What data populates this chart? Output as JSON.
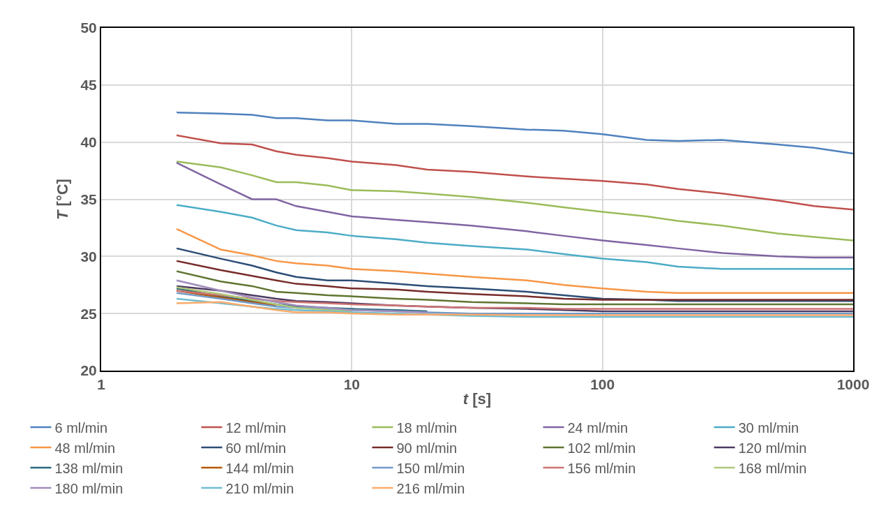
{
  "chart_data": {
    "type": "line",
    "xlabel": "t [s]",
    "ylabel": "T [°C]",
    "x": [
      2,
      3,
      4,
      5,
      6,
      8,
      10,
      15,
      20,
      30,
      50,
      70,
      100,
      150,
      200,
      300,
      500,
      700,
      1000
    ],
    "xlim": [
      1,
      1000
    ],
    "xticks": [
      1,
      10,
      100,
      1000
    ],
    "ylim": [
      20,
      50
    ],
    "yticks": [
      20,
      25,
      30,
      35,
      40,
      45,
      50
    ],
    "log": "x",
    "grid": true,
    "legend": "bottom",
    "marker": "none",
    "line_style": "solid",
    "series": [
      {
        "name": "6 ml/min",
        "color": "#4f81bd",
        "values": [
          42.6,
          42.5,
          42.4,
          42.1,
          42.1,
          41.9,
          41.9,
          41.6,
          41.6,
          41.4,
          41.1,
          41.0,
          40.7,
          40.2,
          40.1,
          40.2,
          39.8,
          39.5,
          39.0
        ]
      },
      {
        "name": "12 ml/min",
        "color": "#c0504d",
        "values": [
          40.6,
          39.9,
          39.8,
          39.2,
          38.9,
          38.6,
          38.3,
          38.0,
          37.6,
          37.4,
          37.0,
          36.8,
          36.6,
          36.3,
          35.9,
          35.5,
          34.9,
          34.4,
          34.1
        ]
      },
      {
        "name": "18 ml/min",
        "color": "#9bbb59",
        "values": [
          38.3,
          37.8,
          37.1,
          36.5,
          36.5,
          36.2,
          35.8,
          35.7,
          35.5,
          35.2,
          34.7,
          34.3,
          33.9,
          33.5,
          33.1,
          32.7,
          32.0,
          31.7,
          31.4
        ]
      },
      {
        "name": "24 ml/min",
        "color": "#8064a2",
        "values": [
          38.2,
          36.3,
          35.0,
          35.0,
          34.4,
          33.9,
          33.5,
          33.2,
          33.0,
          32.7,
          32.2,
          31.8,
          31.4,
          31.0,
          30.7,
          30.3,
          30.0,
          29.9,
          29.9
        ]
      },
      {
        "name": "30 ml/min",
        "color": "#4bacc6",
        "values": [
          34.5,
          33.9,
          33.4,
          32.7,
          32.3,
          32.1,
          31.8,
          31.5,
          31.2,
          30.9,
          30.6,
          30.2,
          29.8,
          29.5,
          29.1,
          28.9,
          28.9,
          28.9,
          28.9
        ]
      },
      {
        "name": "48 ml/min",
        "color": "#f79646",
        "values": [
          32.4,
          30.6,
          30.1,
          29.6,
          29.4,
          29.2,
          28.9,
          28.7,
          28.5,
          28.2,
          27.9,
          27.5,
          27.2,
          26.9,
          26.8,
          26.8,
          26.8,
          26.8,
          26.8
        ]
      },
      {
        "name": "60 ml/min",
        "color": "#2c4d75",
        "values": [
          30.7,
          29.8,
          29.2,
          28.6,
          28.2,
          27.9,
          27.9,
          27.6,
          27.4,
          27.2,
          26.9,
          26.6,
          26.3,
          26.2,
          26.1,
          26.1,
          26.1,
          26.1,
          26.1
        ]
      },
      {
        "name": "90 ml/min",
        "color": "#772c2a",
        "values": [
          29.6,
          28.8,
          28.3,
          27.9,
          27.6,
          27.4,
          27.2,
          27.1,
          26.9,
          26.7,
          26.5,
          26.3,
          26.2,
          26.2,
          26.2,
          26.2,
          26.2,
          26.2,
          26.2
        ]
      },
      {
        "name": "102 ml/min",
        "color": "#5f7530",
        "values": [
          28.7,
          27.8,
          27.4,
          26.9,
          26.8,
          26.6,
          26.5,
          26.3,
          26.2,
          26.0,
          25.9,
          25.8,
          25.8,
          25.8,
          25.8,
          25.8,
          25.8,
          25.8,
          25.8
        ]
      },
      {
        "name": "120 ml/min",
        "color": "#4d3b62",
        "values": [
          27.4,
          27.0,
          26.6,
          26.3,
          26.1,
          26.0,
          25.9,
          25.7,
          25.6,
          25.5,
          25.4,
          25.3,
          25.2,
          25.2,
          25.2,
          25.2,
          25.2,
          25.2,
          25.2
        ]
      },
      {
        "name": "138 ml/min",
        "color": "#276a7c",
        "values": [
          27.2,
          26.5,
          26.1,
          25.8,
          25.6,
          25.5,
          25.4,
          25.3,
          25.2,
          null,
          null,
          null,
          null,
          null,
          null,
          null,
          null,
          null,
          null
        ]
      },
      {
        "name": "144 ml/min",
        "color": "#b65708",
        "values": [
          27.0,
          26.4,
          26.0,
          25.7,
          null,
          null,
          null,
          null,
          null,
          null,
          null,
          null,
          null,
          null,
          null,
          null,
          null,
          null,
          null
        ]
      },
      {
        "name": "150 ml/min",
        "color": "#729aca",
        "values": [
          26.8,
          26.3,
          25.9,
          25.6,
          25.5,
          25.4,
          25.3,
          25.2,
          25.1,
          25.0,
          25.0,
          25.0,
          25.0,
          25.0,
          25.0,
          25.0,
          25.0,
          25.0,
          25.0
        ]
      },
      {
        "name": "156 ml/min",
        "color": "#cd7371",
        "values": [
          27.0,
          26.6,
          26.3,
          26.1,
          26.0,
          25.9,
          25.8,
          25.7,
          25.6,
          25.5,
          25.5,
          25.4,
          25.4,
          25.4,
          25.4,
          25.4,
          25.4,
          25.4,
          25.4
        ]
      },
      {
        "name": "168 ml/min",
        "color": "#afc97a",
        "values": [
          27.3,
          26.7,
          26.2,
          25.8,
          25.5,
          25.3,
          25.2,
          null,
          null,
          null,
          null,
          null,
          null,
          null,
          null,
          null,
          null,
          null,
          null
        ]
      },
      {
        "name": "180 ml/min",
        "color": "#a18dbc",
        "values": [
          27.9,
          27.0,
          26.4,
          26.0,
          25.7,
          25.5,
          25.3,
          25.2,
          25.1,
          null,
          null,
          null,
          null,
          null,
          null,
          null,
          null,
          null,
          null
        ]
      },
      {
        "name": "210 ml/min",
        "color": "#6fbdd1",
        "values": [
          26.3,
          25.9,
          25.6,
          25.4,
          25.3,
          25.2,
          25.1,
          25.0,
          24.9,
          24.8,
          24.7,
          24.7,
          24.7,
          24.7,
          24.7,
          24.7,
          24.7,
          24.7,
          24.7
        ]
      },
      {
        "name": "216 ml/min",
        "color": "#f9ab6b",
        "values": [
          25.9,
          26.0,
          25.6,
          25.3,
          25.1,
          25.1,
          25.0,
          24.9,
          24.9,
          24.9,
          24.85,
          24.85,
          24.85,
          24.85,
          24.85,
          24.85,
          24.85,
          24.85,
          24.85
        ]
      }
    ]
  }
}
